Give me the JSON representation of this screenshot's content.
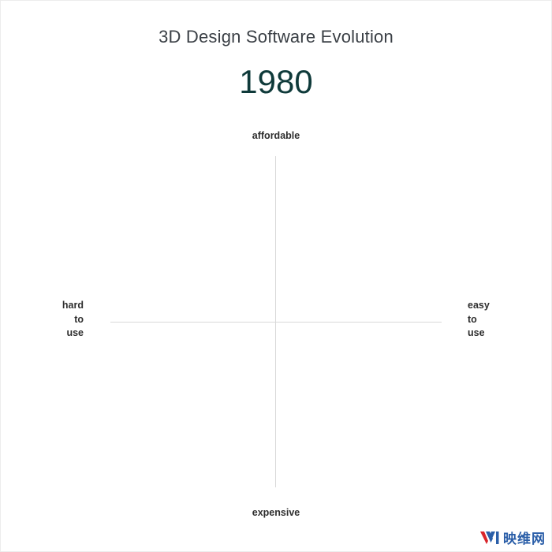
{
  "title": "3D Design Software Evolution",
  "year": "1980",
  "axes": {
    "top": "affordable",
    "bottom": "expensive",
    "left": [
      "hard",
      "to",
      "use"
    ],
    "right": [
      "easy",
      "to",
      "use"
    ]
  },
  "watermark": {
    "text": "映维网",
    "icon": "yivian-logo-icon",
    "colors": {
      "logo_red": "#d9252a",
      "logo_blue": "#2a5ea8"
    }
  },
  "colors": {
    "title": "#3a3f45",
    "year": "#0f3a3a",
    "axis": "#d9d9d9",
    "label": "#2e2e2e"
  }
}
